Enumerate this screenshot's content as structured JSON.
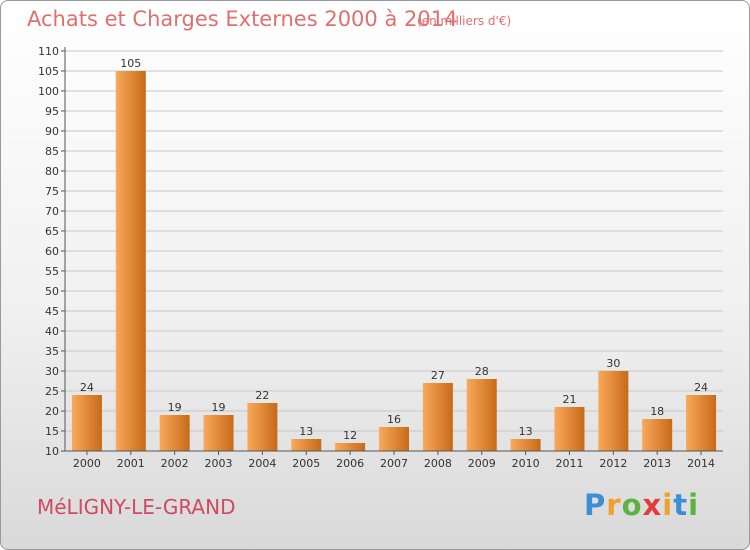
{
  "title": "Achats et Charges Externes 2000 à 2014",
  "unit": "(en milliers d'€)",
  "commune": "MéLIGNY-LE-GRAND",
  "logo": {
    "letters": [
      "P",
      "r",
      "o",
      "x",
      "i",
      "t",
      "i"
    ],
    "colors": [
      "#3c8fd6",
      "#f0a030",
      "#5cb33e",
      "#e03c3c",
      "#f0a030",
      "#3c8fd6",
      "#5cb33e"
    ]
  },
  "colors": {
    "bar_top": "#f8a95a",
    "bar_bottom": "#c86a18",
    "grid": "#c8c8c8"
  },
  "chart_data": {
    "type": "bar",
    "categories": [
      "2000",
      "2001",
      "2002",
      "2003",
      "2004",
      "2005",
      "2006",
      "2007",
      "2008",
      "2009",
      "2010",
      "2011",
      "2012",
      "2013",
      "2014"
    ],
    "values": [
      24,
      105,
      19,
      19,
      22,
      13,
      12,
      16,
      27,
      28,
      13,
      21,
      30,
      18,
      24
    ],
    "ylim": [
      10,
      110
    ],
    "yticks": [
      10,
      15,
      20,
      25,
      30,
      35,
      40,
      45,
      50,
      55,
      60,
      65,
      70,
      75,
      80,
      85,
      90,
      95,
      100,
      105,
      110
    ],
    "grid": true,
    "xlabel": "",
    "ylabel": ""
  }
}
